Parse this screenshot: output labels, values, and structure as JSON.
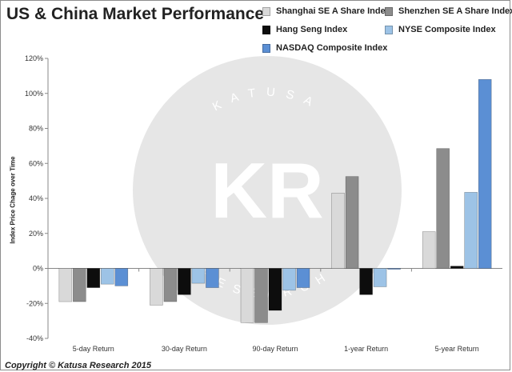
{
  "chart_data": {
    "type": "bar",
    "title": "US & China Market Performance",
    "ylabel": "Index Price Chage over Time",
    "xlabel": "",
    "categories": [
      "5-day Return",
      "30-day Return",
      "90-day Return",
      "1-year Return",
      "5-year Return"
    ],
    "series": [
      {
        "name": "Shanghai SE A Share Index",
        "color": "#d9d9d9",
        "values": [
          -19,
          -21,
          -31,
          43,
          21
        ]
      },
      {
        "name": "Shenzhen SE A Share Index",
        "color": "#8c8c8c",
        "values": [
          -19,
          -19,
          -31,
          52.5,
          68.5
        ]
      },
      {
        "name": "Hang Seng Index",
        "color": "#0d0d0d",
        "values": [
          -11,
          -15,
          -24,
          -15,
          1.3
        ]
      },
      {
        "name": "NYSE Composite Index",
        "color": "#9dc3e6",
        "values": [
          -9,
          -8.5,
          -12.5,
          -10.5,
          43.5
        ]
      },
      {
        "name": "NASDAQ Composite Index",
        "color": "#5b8fd4",
        "values": [
          -10,
          -11,
          -11,
          -0.5,
          108
        ]
      }
    ],
    "ylim": [
      -40,
      120
    ],
    "yticks": [
      "-40%",
      "-20%",
      "0%",
      "20%",
      "40%",
      "60%",
      "80%",
      "100%",
      "120%"
    ],
    "grid": false,
    "legend": "top-right"
  },
  "watermark": {
    "letters": "KR",
    "ring_text_top": "KATUSA",
    "ring_text_bottom": "RESEARCH"
  },
  "copyright": "Copyright © Katusa Research 2015"
}
